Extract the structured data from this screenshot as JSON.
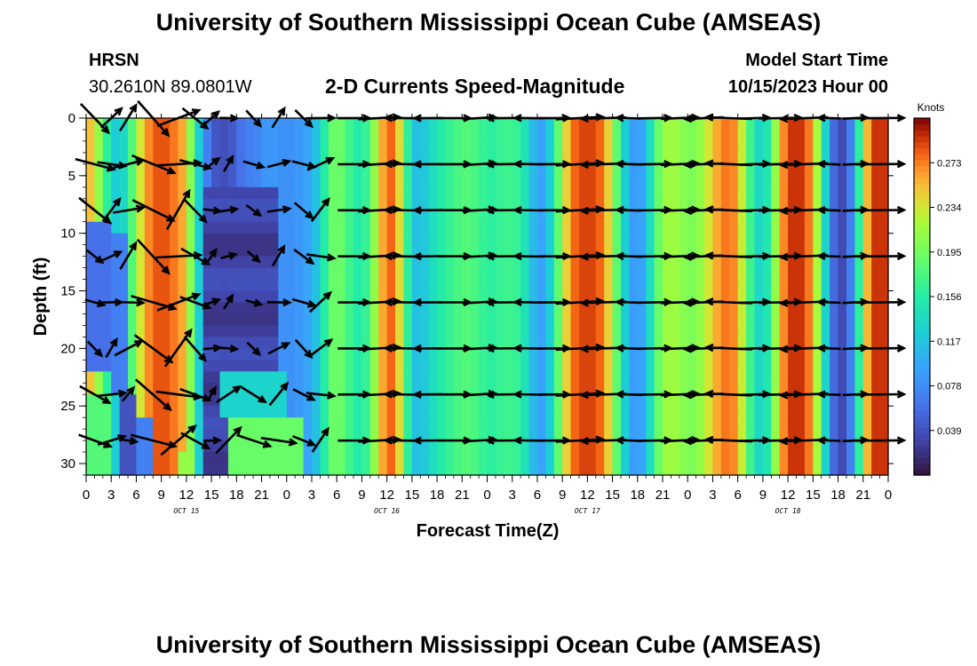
{
  "header": {
    "title": "University of Southern Mississippi Ocean Cube (AMSEAS)",
    "station_code": "HRSN",
    "station_coords": "30.2610N  89.0801W",
    "plot_title": "2-D Currents Speed-Magnitude",
    "model_label": "Model Start Time",
    "model_start": "10/15/2023 Hour 00"
  },
  "footer": {
    "title": "University of Southern Mississippi Ocean Cube (AMSEAS)"
  },
  "chart_data": {
    "type": "heatmap",
    "title": "2-D Currents Speed-Magnitude",
    "xlabel": "Forecast Time(Z)",
    "ylabel": "Depth (ft)",
    "x_unit": "hours since 10/15/2023 00Z",
    "xlim": [
      0,
      96
    ],
    "ylim": [
      0,
      31
    ],
    "x_tick_values": [
      0,
      3,
      6,
      9,
      12,
      15,
      18,
      21,
      24,
      27,
      30,
      33,
      36,
      39,
      42,
      45,
      48,
      51,
      54,
      57,
      60,
      63,
      66,
      69,
      72,
      75,
      78,
      81,
      84,
      87,
      90,
      93,
      96
    ],
    "x_tick_labels": [
      "0",
      "3",
      "6",
      "9",
      "12",
      "15",
      "18",
      "21",
      "0",
      "3",
      "6",
      "9",
      "12",
      "15",
      "18",
      "21",
      "0",
      "3",
      "6",
      "9",
      "12",
      "15",
      "18",
      "21",
      "0",
      "3",
      "6",
      "9",
      "12",
      "15",
      "18",
      "21",
      "0"
    ],
    "y_ticks": [
      0,
      5,
      10,
      15,
      20,
      25,
      30
    ],
    "date_labels": [
      {
        "hour": 12,
        "text": "OCT 15"
      },
      {
        "hour": 36,
        "text": "OCT 16"
      },
      {
        "hour": 60,
        "text": "OCT 17"
      },
      {
        "hour": 84,
        "text": "OCT 18"
      }
    ],
    "colorbar": {
      "label": "Knots",
      "min": 0.0,
      "max": 0.312,
      "ticks": [
        0.039,
        0.078,
        0.117,
        0.156,
        0.195,
        0.234,
        0.273
      ]
    },
    "surface_speed_profile": {
      "hours": [
        0,
        2,
        3,
        4,
        5,
        6,
        7,
        8,
        9,
        10,
        11,
        12,
        13,
        14,
        15,
        16,
        17,
        18,
        19,
        20,
        21,
        22,
        23,
        24,
        25,
        26,
        27,
        28,
        29,
        30,
        31,
        32,
        33,
        34,
        35,
        36,
        37,
        38,
        39,
        40,
        41,
        42,
        43,
        44,
        45,
        46,
        47,
        48,
        49,
        50,
        51,
        52,
        53,
        54,
        55,
        56,
        57,
        58,
        59,
        60,
        61,
        62,
        63,
        64,
        65,
        66,
        67,
        68,
        69,
        70,
        71,
        72,
        73,
        74,
        75,
        76,
        77,
        78,
        79,
        80,
        81,
        82,
        83,
        84,
        85,
        86,
        87,
        88,
        89,
        90,
        91,
        92,
        93,
        94,
        95,
        96
      ],
      "speed": [
        0.27,
        0.19,
        0.13,
        0.12,
        0.15,
        0.21,
        0.26,
        0.28,
        0.29,
        0.28,
        0.27,
        0.25,
        0.16,
        0.09,
        0.05,
        0.035,
        0.04,
        0.05,
        0.07,
        0.07,
        0.08,
        0.09,
        0.085,
        0.08,
        0.085,
        0.09,
        0.1,
        0.13,
        0.18,
        0.2,
        0.18,
        0.16,
        0.15,
        0.18,
        0.24,
        0.28,
        0.28,
        0.2,
        0.12,
        0.11,
        0.13,
        0.15,
        0.16,
        0.17,
        0.18,
        0.18,
        0.17,
        0.16,
        0.16,
        0.17,
        0.17,
        0.16,
        0.13,
        0.09,
        0.1,
        0.15,
        0.22,
        0.27,
        0.29,
        0.29,
        0.29,
        0.27,
        0.22,
        0.15,
        0.1,
        0.08,
        0.11,
        0.17,
        0.21,
        0.22,
        0.21,
        0.2,
        0.2,
        0.22,
        0.25,
        0.27,
        0.28,
        0.26,
        0.2,
        0.14,
        0.13,
        0.17,
        0.25,
        0.29,
        0.3,
        0.29,
        0.26,
        0.18,
        0.08,
        0.03,
        0.04,
        0.1,
        0.22,
        0.29,
        0.3,
        0.29
      ]
    },
    "vector_rows_depth_ft": [
      0,
      4,
      8,
      12,
      16,
      20,
      24,
      28
    ],
    "vector_hours": [
      1,
      3,
      5,
      8,
      11,
      13,
      15,
      17,
      20,
      23,
      26,
      28,
      32,
      35,
      38,
      41,
      44,
      47,
      50,
      53,
      56,
      59,
      62,
      65,
      68,
      71,
      74,
      77,
      80,
      83,
      86,
      89,
      92,
      95
    ]
  }
}
